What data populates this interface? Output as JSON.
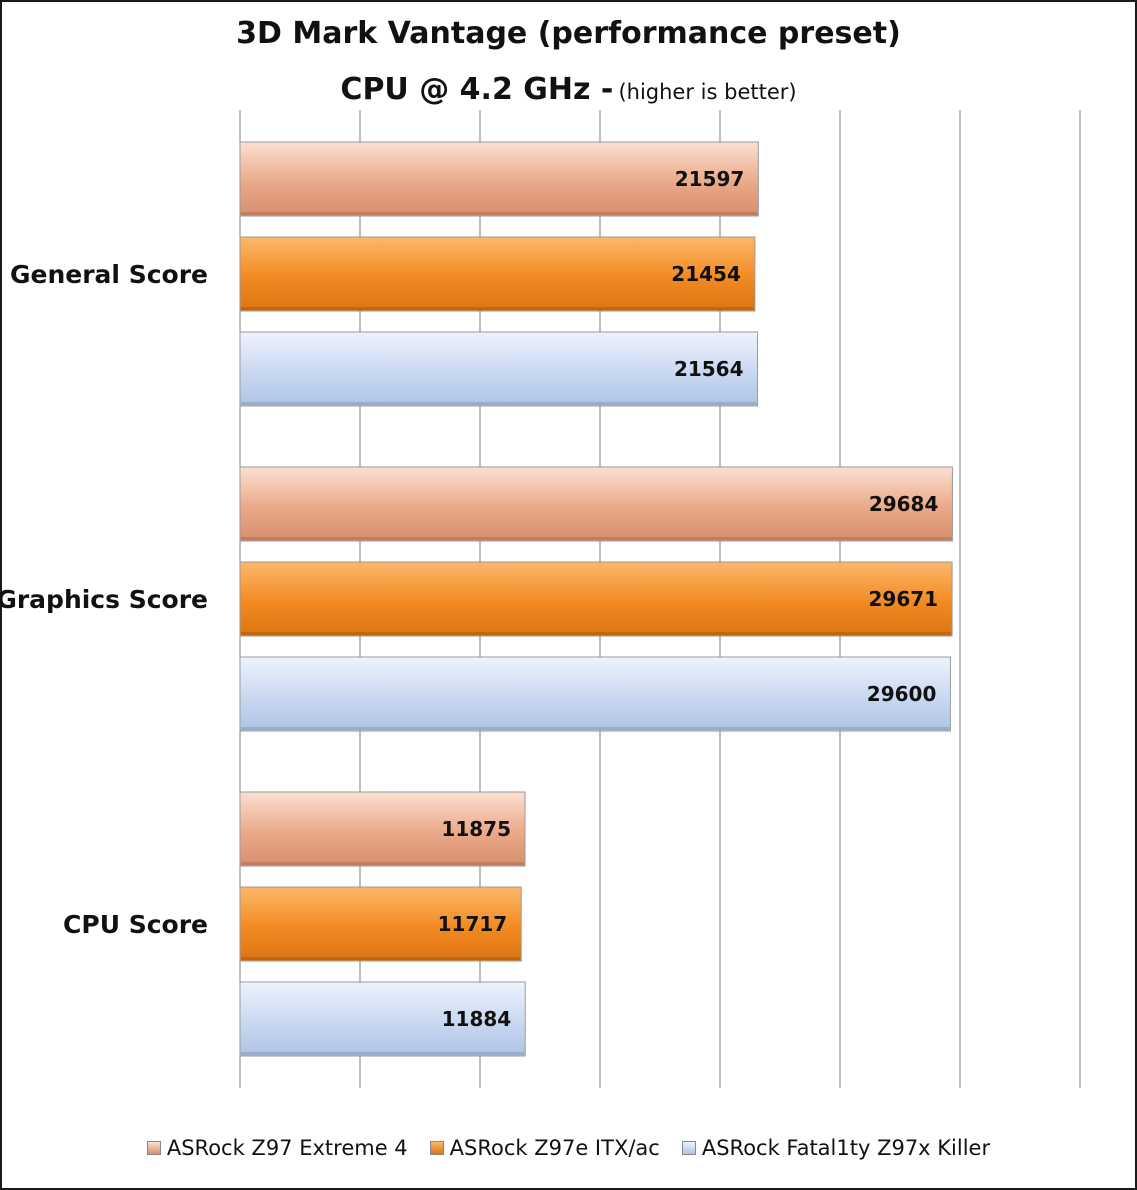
{
  "chart_data": {
    "type": "bar",
    "orientation": "horizontal",
    "title": "3D Mark Vantage (performance preset)",
    "subtitle_main": "CPU @ 4.2 GHz -",
    "subtitle_note": "(higher is better)",
    "categories": [
      "General Score",
      "Graphics Score",
      "CPU Score"
    ],
    "series": [
      {
        "name": "ASRock Z97 Extreme 4",
        "values": [
          21597,
          29684,
          11875
        ],
        "color": "#e8a98a"
      },
      {
        "name": "ASRock Z97e ITX/ac",
        "values": [
          21454,
          29671,
          11717
        ],
        "color": "#f08a2a"
      },
      {
        "name": "ASRock Fatal1ty Z97x Killer",
        "values": [
          21564,
          29600,
          11884
        ],
        "color": "#c6d7f0"
      }
    ],
    "xlim": [
      0,
      35000
    ],
    "grid": true,
    "legend_position": "bottom"
  }
}
